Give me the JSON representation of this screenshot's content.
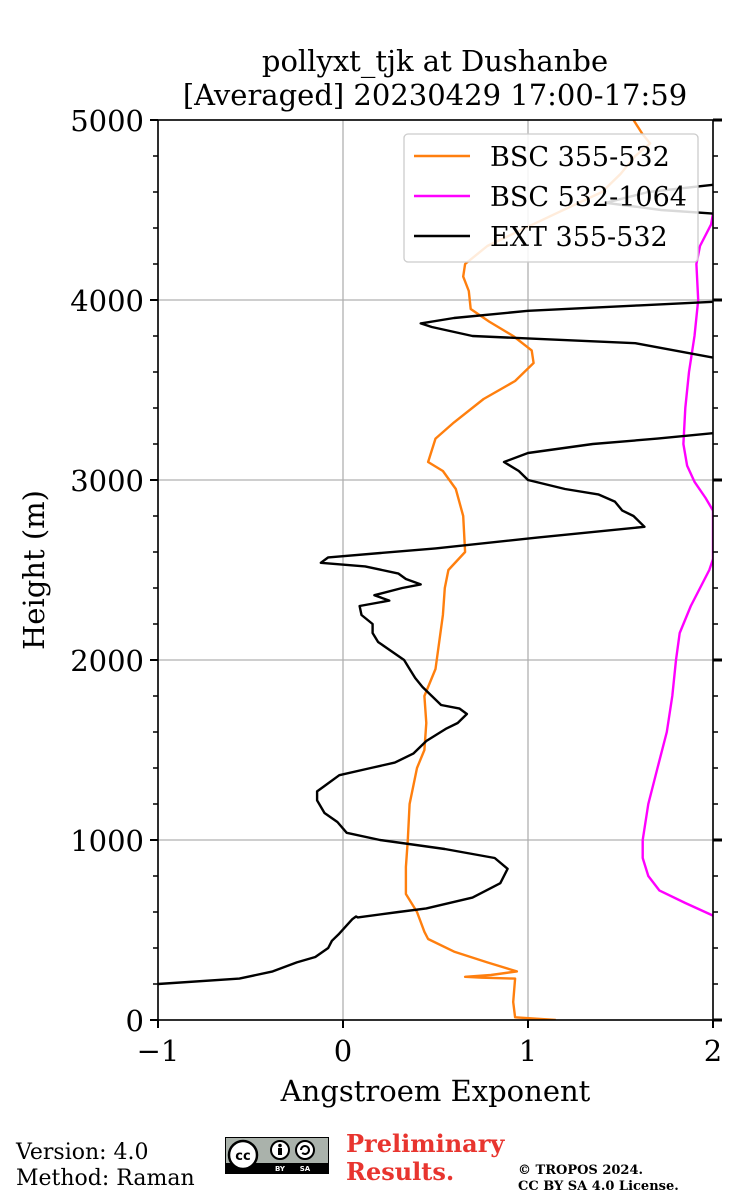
{
  "chart_data": {
    "type": "line",
    "title": [
      "pollyxt_tjk at Dushanbe",
      "[Averaged] 20230429 17:00-17:59"
    ],
    "xlabel": "Angstroem Exponent",
    "ylabel": "Height (m)",
    "xlim": [
      -1,
      2
    ],
    "ylim": [
      0,
      5000
    ],
    "xticks": [
      -1,
      0,
      1,
      2
    ],
    "xtick_labels": [
      "−1",
      "0",
      "1",
      "2"
    ],
    "yticks": [
      0,
      1000,
      2000,
      3000,
      4000,
      5000
    ],
    "ytick_labels": [
      "0",
      "1000",
      "2000",
      "3000",
      "4000",
      "5000"
    ],
    "grid": true,
    "legend_position": "top-right",
    "series": [
      {
        "name": "BSC 355-532",
        "color": "#ff7f0e",
        "points": [
          [
            1.15,
            0
          ],
          [
            0.93,
            15
          ],
          [
            0.92,
            100
          ],
          [
            0.93,
            230
          ],
          [
            0.75,
            235
          ],
          [
            0.66,
            240
          ],
          [
            0.8,
            250
          ],
          [
            0.94,
            270
          ],
          [
            0.78,
            320
          ],
          [
            0.6,
            380
          ],
          [
            0.46,
            450
          ],
          [
            0.44,
            490
          ],
          [
            0.4,
            600
          ],
          [
            0.34,
            700
          ],
          [
            0.34,
            850
          ],
          [
            0.35,
            1000
          ],
          [
            0.36,
            1200
          ],
          [
            0.4,
            1400
          ],
          [
            0.44,
            1500
          ],
          [
            0.45,
            1650
          ],
          [
            0.44,
            1800
          ],
          [
            0.5,
            1950
          ],
          [
            0.52,
            2100
          ],
          [
            0.54,
            2250
          ],
          [
            0.55,
            2400
          ],
          [
            0.57,
            2500
          ],
          [
            0.66,
            2600
          ],
          [
            0.65,
            2800
          ],
          [
            0.61,
            2950
          ],
          [
            0.54,
            3050
          ],
          [
            0.46,
            3100
          ],
          [
            0.5,
            3230
          ],
          [
            0.6,
            3320
          ],
          [
            0.76,
            3450
          ],
          [
            0.93,
            3550
          ],
          [
            1.03,
            3650
          ],
          [
            1.02,
            3720
          ],
          [
            0.92,
            3800
          ],
          [
            0.79,
            3880
          ],
          [
            0.69,
            3950
          ],
          [
            0.68,
            4050
          ],
          [
            0.65,
            4130
          ],
          [
            0.66,
            4200
          ],
          [
            0.78,
            4300
          ],
          [
            1.15,
            4480
          ],
          [
            1.4,
            4600
          ],
          [
            1.5,
            4700
          ],
          [
            1.58,
            4800
          ],
          [
            1.66,
            4870
          ],
          [
            1.62,
            4920
          ],
          [
            1.57,
            5000
          ]
        ]
      },
      {
        "name": "BSC 532-1064",
        "color": "#ff00ff",
        "points": [
          [
            2.0,
            580
          ],
          [
            1.85,
            650
          ],
          [
            1.71,
            720
          ],
          [
            1.65,
            800
          ],
          [
            1.62,
            900
          ],
          [
            1.62,
            1000
          ],
          [
            1.65,
            1200
          ],
          [
            1.7,
            1400
          ],
          [
            1.75,
            1600
          ],
          [
            1.78,
            1800
          ],
          [
            1.8,
            2000
          ],
          [
            1.82,
            2150
          ],
          [
            1.88,
            2300
          ],
          [
            1.98,
            2500
          ],
          [
            2.0,
            2560
          ],
          [
            2.0,
            2830
          ],
          [
            1.96,
            2900
          ],
          [
            1.9,
            2990
          ],
          [
            1.86,
            3080
          ],
          [
            1.84,
            3200
          ],
          [
            1.85,
            3400
          ],
          [
            1.87,
            3600
          ],
          [
            1.9,
            3800
          ],
          [
            1.92,
            4000
          ],
          [
            1.91,
            4200
          ],
          [
            1.93,
            4300
          ],
          [
            1.99,
            4420
          ],
          [
            2.0,
            4480
          ]
        ]
      },
      {
        "name": "EXT 355-532",
        "color": "#000000",
        "points": [
          [
            -1.0,
            200
          ],
          [
            -0.56,
            230
          ],
          [
            -0.38,
            270
          ],
          [
            -0.25,
            320
          ],
          [
            -0.15,
            350
          ],
          [
            -0.08,
            400
          ],
          [
            -0.06,
            440
          ],
          [
            -0.02,
            480
          ],
          [
            0.05,
            560
          ],
          [
            0.07,
            575
          ],
          [
            0.08,
            570
          ],
          [
            0.3,
            600
          ],
          [
            0.45,
            620
          ],
          [
            0.7,
            680
          ],
          [
            0.85,
            760
          ],
          [
            0.89,
            840
          ],
          [
            0.82,
            900
          ],
          [
            0.55,
            950
          ],
          [
            0.2,
            1000
          ],
          [
            0.02,
            1040
          ],
          [
            -0.03,
            1100
          ],
          [
            -0.1,
            1150
          ],
          [
            -0.14,
            1220
          ],
          [
            -0.14,
            1270
          ],
          [
            -0.1,
            1300
          ],
          [
            -0.02,
            1360
          ],
          [
            0.15,
            1400
          ],
          [
            0.28,
            1430
          ],
          [
            0.38,
            1480
          ],
          [
            0.45,
            1550
          ],
          [
            0.56,
            1620
          ],
          [
            0.62,
            1650
          ],
          [
            0.67,
            1700
          ],
          [
            0.63,
            1730
          ],
          [
            0.53,
            1750
          ],
          [
            0.48,
            1800
          ],
          [
            0.43,
            1850
          ],
          [
            0.39,
            1900
          ],
          [
            0.36,
            1950
          ],
          [
            0.33,
            2000
          ],
          [
            0.26,
            2050
          ],
          [
            0.19,
            2100
          ],
          [
            0.16,
            2150
          ],
          [
            0.16,
            2200
          ],
          [
            0.1,
            2250
          ],
          [
            0.09,
            2300
          ],
          [
            0.25,
            2330
          ],
          [
            0.17,
            2360
          ],
          [
            0.32,
            2400
          ],
          [
            0.42,
            2420
          ],
          [
            0.34,
            2450
          ],
          [
            0.3,
            2480
          ],
          [
            0.12,
            2520
          ],
          [
            -0.12,
            2540
          ],
          [
            -0.08,
            2570
          ],
          [
            0.5,
            2620
          ],
          [
            1.05,
            2680
          ],
          [
            1.63,
            2740
          ],
          [
            1.57,
            2800
          ],
          [
            1.51,
            2830
          ],
          [
            1.47,
            2880
          ],
          [
            1.38,
            2920
          ],
          [
            1.2,
            2950
          ],
          [
            1.0,
            3000
          ],
          [
            0.95,
            3050
          ],
          [
            0.87,
            3100
          ],
          [
            1.0,
            3150
          ],
          [
            1.35,
            3200
          ],
          [
            1.7,
            3230
          ],
          [
            2.0,
            3260
          ]
        ]
      },
      {
        "name": "EXT 355-532 (upper segment)",
        "color": "#000000",
        "points": [
          [
            2.0,
            3680
          ],
          [
            1.58,
            3760
          ],
          [
            0.7,
            3800
          ],
          [
            0.48,
            3850
          ],
          [
            0.42,
            3870
          ],
          [
            0.6,
            3900
          ],
          [
            1.0,
            3940
          ],
          [
            1.6,
            3970
          ],
          [
            2.0,
            3990
          ]
        ]
      },
      {
        "name": "EXT 355-532 (top segment)",
        "color": "#000000",
        "points": [
          [
            2.0,
            4480
          ],
          [
            1.72,
            4500
          ],
          [
            1.42,
            4540
          ],
          [
            1.65,
            4600
          ],
          [
            2.0,
            4640
          ]
        ]
      }
    ],
    "legend": [
      "BSC 355-532",
      "BSC 532-1064",
      "EXT 355-532"
    ]
  },
  "footer": {
    "version": "Version: 4.0",
    "method": "Method: Raman",
    "preliminary_line1": "Preliminary",
    "preliminary_line2": "Results.",
    "copyright_line1": "© TROPOS 2024.",
    "copyright_line2": "CC BY SA 4.0 License.",
    "license_badge": "cc-by-sa-icon"
  }
}
